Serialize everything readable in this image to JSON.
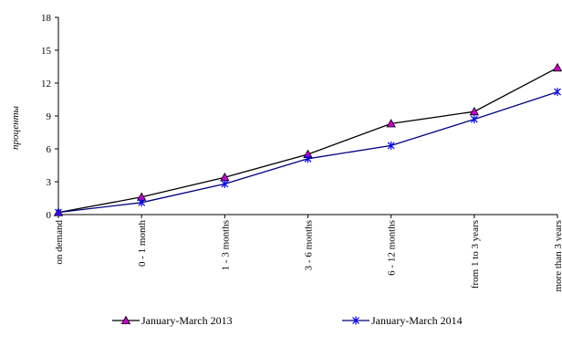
{
  "chart_data": {
    "type": "line",
    "title": "",
    "xlabel": "",
    "ylabel": "проценты",
    "categories": [
      "on demand",
      "0 - 1 month",
      "1 - 3 months",
      "3 - 6 months",
      "6 - 12 months",
      "from 1 to 3 years",
      "more than 3 years"
    ],
    "ylim": [
      0,
      18
    ],
    "yticks": [
      "0",
      "3",
      "6",
      "9",
      "12",
      "15",
      "18"
    ],
    "grid": false,
    "legend_position": "bottom",
    "series": [
      {
        "name": "January-March 2013",
        "values": [
          0.2,
          1.6,
          3.4,
          5.5,
          8.3,
          9.4,
          13.4
        ],
        "line_color": "#000000",
        "marker": "triangle",
        "marker_color": "#cc00cc"
      },
      {
        "name": "January-March 2014",
        "values": [
          0.2,
          1.1,
          2.8,
          5.1,
          6.3,
          8.7,
          11.2
        ],
        "line_color": "#000080",
        "marker": "star",
        "marker_color": "#0000ff"
      }
    ]
  }
}
